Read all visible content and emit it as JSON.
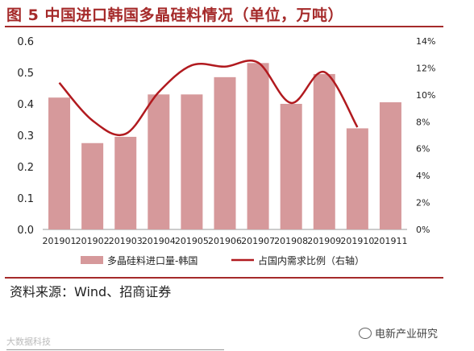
{
  "title": "图 5 中国进口韩国多晶硅料情况（单位，万吨）",
  "source": "资料来源：Wind、招商证券",
  "watermark_left": "大数据科技",
  "watermark_right": "电新产业研究",
  "colors": {
    "bar": "#d6999b",
    "line": "#b11a1f",
    "title": "#a52a2a"
  },
  "chart_data": {
    "type": "bar",
    "categories": [
      "201901",
      "201902",
      "201903",
      "201904",
      "201905",
      "201906",
      "201907",
      "201908",
      "201909",
      "201910",
      "201911"
    ],
    "series": [
      {
        "name": "多晶硅料进口量-韩国",
        "type": "bar",
        "axis": "left",
        "values": [
          0.42,
          0.275,
          0.295,
          0.43,
          0.43,
          0.485,
          0.53,
          0.4,
          0.495,
          0.322,
          0.405
        ]
      },
      {
        "name": "占国内需求比例（右轴）",
        "type": "line",
        "axis": "right",
        "values": [
          10.9,
          8.1,
          7.1,
          10.2,
          12.2,
          12.1,
          12.4,
          9.4,
          11.7,
          7.6,
          null
        ]
      }
    ],
    "ylim": [
      0,
      0.6
    ],
    "yticks": [
      "0.0",
      "0.1",
      "0.2",
      "0.3",
      "0.4",
      "0.5",
      "0.6"
    ],
    "y2lim": [
      0,
      14
    ],
    "y2ticks": [
      "0%",
      "2%",
      "4%",
      "6%",
      "8%",
      "10%",
      "12%",
      "14%"
    ],
    "legend_position": "bottom",
    "grid": false
  }
}
